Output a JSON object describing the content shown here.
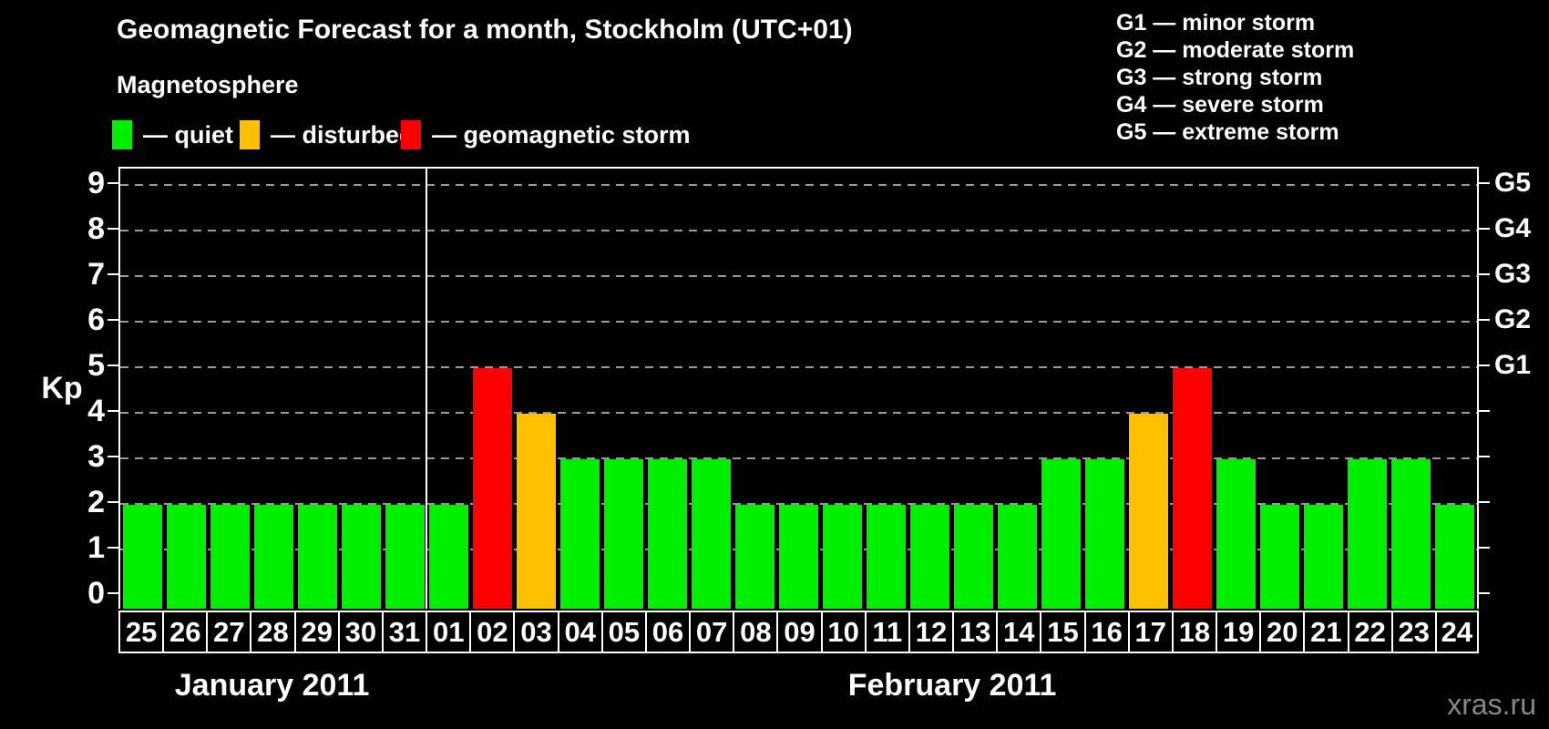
{
  "title": "Geomagnetic Forecast for a month, Stockholm (UTC+01)",
  "legend": {
    "heading": "Magnetosphere",
    "items": [
      {
        "name": "quiet",
        "label": "— quiet",
        "color": "#00f000"
      },
      {
        "name": "disturbed",
        "label": "— disturbed",
        "color": "#ffc000"
      },
      {
        "name": "storm",
        "label": "— geomagnetic storm",
        "color": "#ff0000"
      }
    ]
  },
  "storm_scale_legend": [
    "G1 — minor storm",
    "G2 — moderate storm",
    "G3 — strong storm",
    "G4 — severe storm",
    "G5 — extreme storm"
  ],
  "watermark": "xras.ru",
  "chart_data": {
    "type": "bar",
    "title": "Geomagnetic Forecast for a month, Stockholm (UTC+01)",
    "ylabel": "Kp",
    "ylim": [
      0,
      9.4
    ],
    "yticks": [
      0,
      1,
      2,
      3,
      4,
      5,
      6,
      7,
      8,
      9
    ],
    "grid": "horizontal-dashed",
    "right_axis_labels": [
      {
        "value": 5,
        "label": "G1"
      },
      {
        "value": 6,
        "label": "G2"
      },
      {
        "value": 7,
        "label": "G3"
      },
      {
        "value": 8,
        "label": "G4"
      },
      {
        "value": 9,
        "label": "G5"
      }
    ],
    "status_colors": {
      "quiet": "#00f000",
      "disturbed": "#ffc000",
      "storm": "#ff0000"
    },
    "status_rule": "kp<=3 quiet, kp=4 disturbed, kp>=5 storm",
    "months": [
      {
        "label": "January 2011",
        "count": 7
      },
      {
        "label": "February 2011",
        "count": 24
      }
    ],
    "bars": [
      {
        "day": "25",
        "kp": 2,
        "status": "quiet"
      },
      {
        "day": "26",
        "kp": 2,
        "status": "quiet"
      },
      {
        "day": "27",
        "kp": 2,
        "status": "quiet"
      },
      {
        "day": "28",
        "kp": 2,
        "status": "quiet"
      },
      {
        "day": "29",
        "kp": 2,
        "status": "quiet"
      },
      {
        "day": "30",
        "kp": 2,
        "status": "quiet"
      },
      {
        "day": "31",
        "kp": 2,
        "status": "quiet"
      },
      {
        "day": "01",
        "kp": 2,
        "status": "quiet"
      },
      {
        "day": "02",
        "kp": 5,
        "status": "storm"
      },
      {
        "day": "03",
        "kp": 4,
        "status": "disturbed"
      },
      {
        "day": "04",
        "kp": 3,
        "status": "quiet"
      },
      {
        "day": "05",
        "kp": 3,
        "status": "quiet"
      },
      {
        "day": "06",
        "kp": 3,
        "status": "quiet"
      },
      {
        "day": "07",
        "kp": 3,
        "status": "quiet"
      },
      {
        "day": "08",
        "kp": 2,
        "status": "quiet"
      },
      {
        "day": "09",
        "kp": 2,
        "status": "quiet"
      },
      {
        "day": "10",
        "kp": 2,
        "status": "quiet"
      },
      {
        "day": "11",
        "kp": 2,
        "status": "quiet"
      },
      {
        "day": "12",
        "kp": 2,
        "status": "quiet"
      },
      {
        "day": "13",
        "kp": 2,
        "status": "quiet"
      },
      {
        "day": "14",
        "kp": 2,
        "status": "quiet"
      },
      {
        "day": "15",
        "kp": 3,
        "status": "quiet"
      },
      {
        "day": "16",
        "kp": 3,
        "status": "quiet"
      },
      {
        "day": "17",
        "kp": 4,
        "status": "disturbed"
      },
      {
        "day": "18",
        "kp": 5,
        "status": "storm"
      },
      {
        "day": "19",
        "kp": 3,
        "status": "quiet"
      },
      {
        "day": "20",
        "kp": 2,
        "status": "quiet"
      },
      {
        "day": "21",
        "kp": 2,
        "status": "quiet"
      },
      {
        "day": "22",
        "kp": 3,
        "status": "quiet"
      },
      {
        "day": "23",
        "kp": 3,
        "status": "quiet"
      },
      {
        "day": "24",
        "kp": 2,
        "status": "quiet"
      }
    ]
  }
}
